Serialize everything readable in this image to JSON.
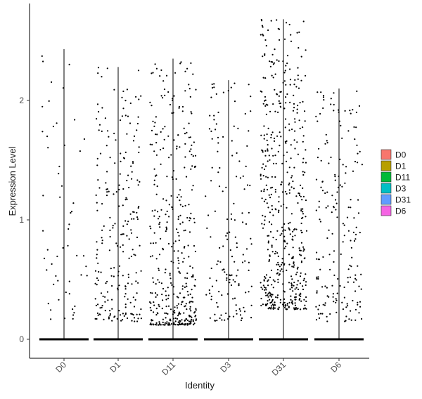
{
  "chart_data": {
    "type": "violin-jitter",
    "title": "",
    "xlabel": "Identity",
    "ylabel": "Expression Level",
    "ylim": [
      -0.15,
      2.82
    ],
    "yticks": [
      0,
      1,
      2
    ],
    "ytick_labels": [
      "0",
      "1",
      "2"
    ],
    "categories": [
      "D0",
      "D1",
      "D11",
      "D3",
      "D31",
      "D6"
    ],
    "grid": false,
    "legend": {
      "placement": "right",
      "entries": [
        {
          "name": "D0",
          "color": "#F8766D"
        },
        {
          "name": "D1",
          "color": "#B79F00"
        },
        {
          "name": "D11",
          "color": "#00BA38"
        },
        {
          "name": "D3",
          "color": "#00BFC4"
        },
        {
          "name": "D31",
          "color": "#619CFF"
        },
        {
          "name": "D6",
          "color": "#F564E3"
        }
      ]
    },
    "series": [
      {
        "category": "D0",
        "max": 2.43,
        "nonzero_points": 55,
        "seed": 11
      },
      {
        "category": "D1",
        "max": 2.28,
        "nonzero_points": 230,
        "seed": 23
      },
      {
        "category": "D11",
        "max": 2.35,
        "nonzero_points": 400,
        "seed": 37
      },
      {
        "category": "D3",
        "max": 2.17,
        "nonzero_points": 150,
        "seed": 41
      },
      {
        "category": "D31",
        "max": 2.68,
        "nonzero_points": 520,
        "seed": 53
      },
      {
        "category": "D6",
        "max": 2.1,
        "nonzero_points": 190,
        "seed": 67
      }
    ]
  }
}
